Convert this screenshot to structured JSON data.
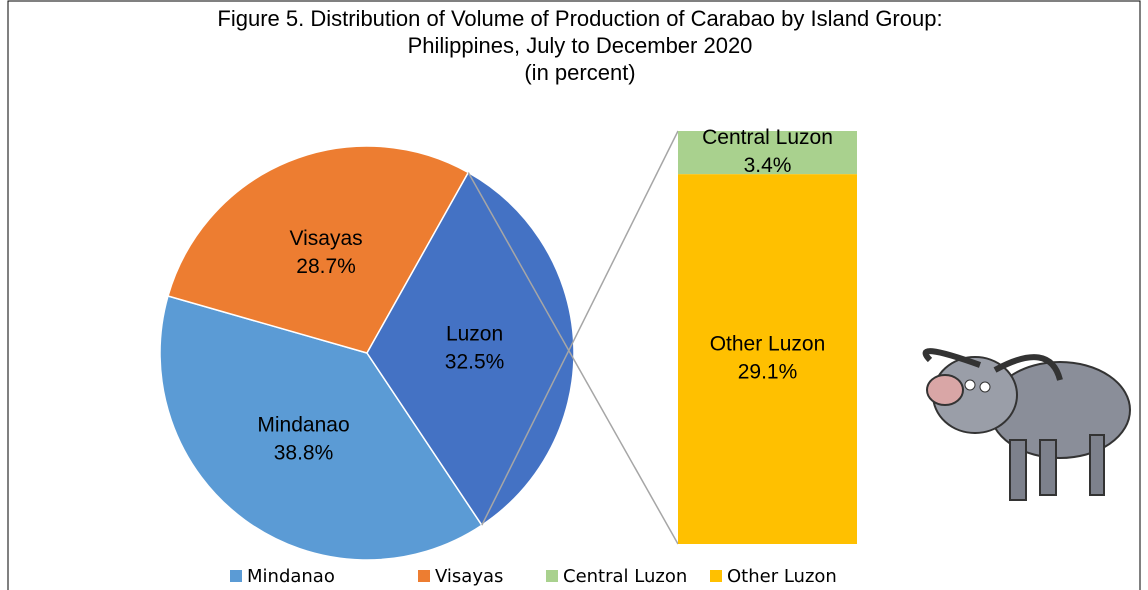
{
  "chart_data": {
    "type": "pie",
    "title": "Figure 5.  Distribution of Volume of Production of Carabao by Island Group:",
    "subtitle": "Philippines, July to December 2020",
    "note": "(in percent)",
    "categories": [
      "Mindanao",
      "Visayas",
      "Luzon"
    ],
    "values": [
      38.8,
      28.7,
      32.5
    ],
    "value_labels": [
      "38.8%",
      "28.7%",
      "32.5%"
    ],
    "colors": [
      "#5b9bd5",
      "#ed7d31",
      "#4472c4"
    ],
    "breakdown": {
      "categories": [
        "Central Luzon",
        "Other Luzon"
      ],
      "values": [
        3.4,
        29.1
      ],
      "value_labels": [
        "3.4%",
        "29.1%"
      ],
      "colors": [
        "#a9d18e",
        "#ffc000"
      ]
    }
  }
}
